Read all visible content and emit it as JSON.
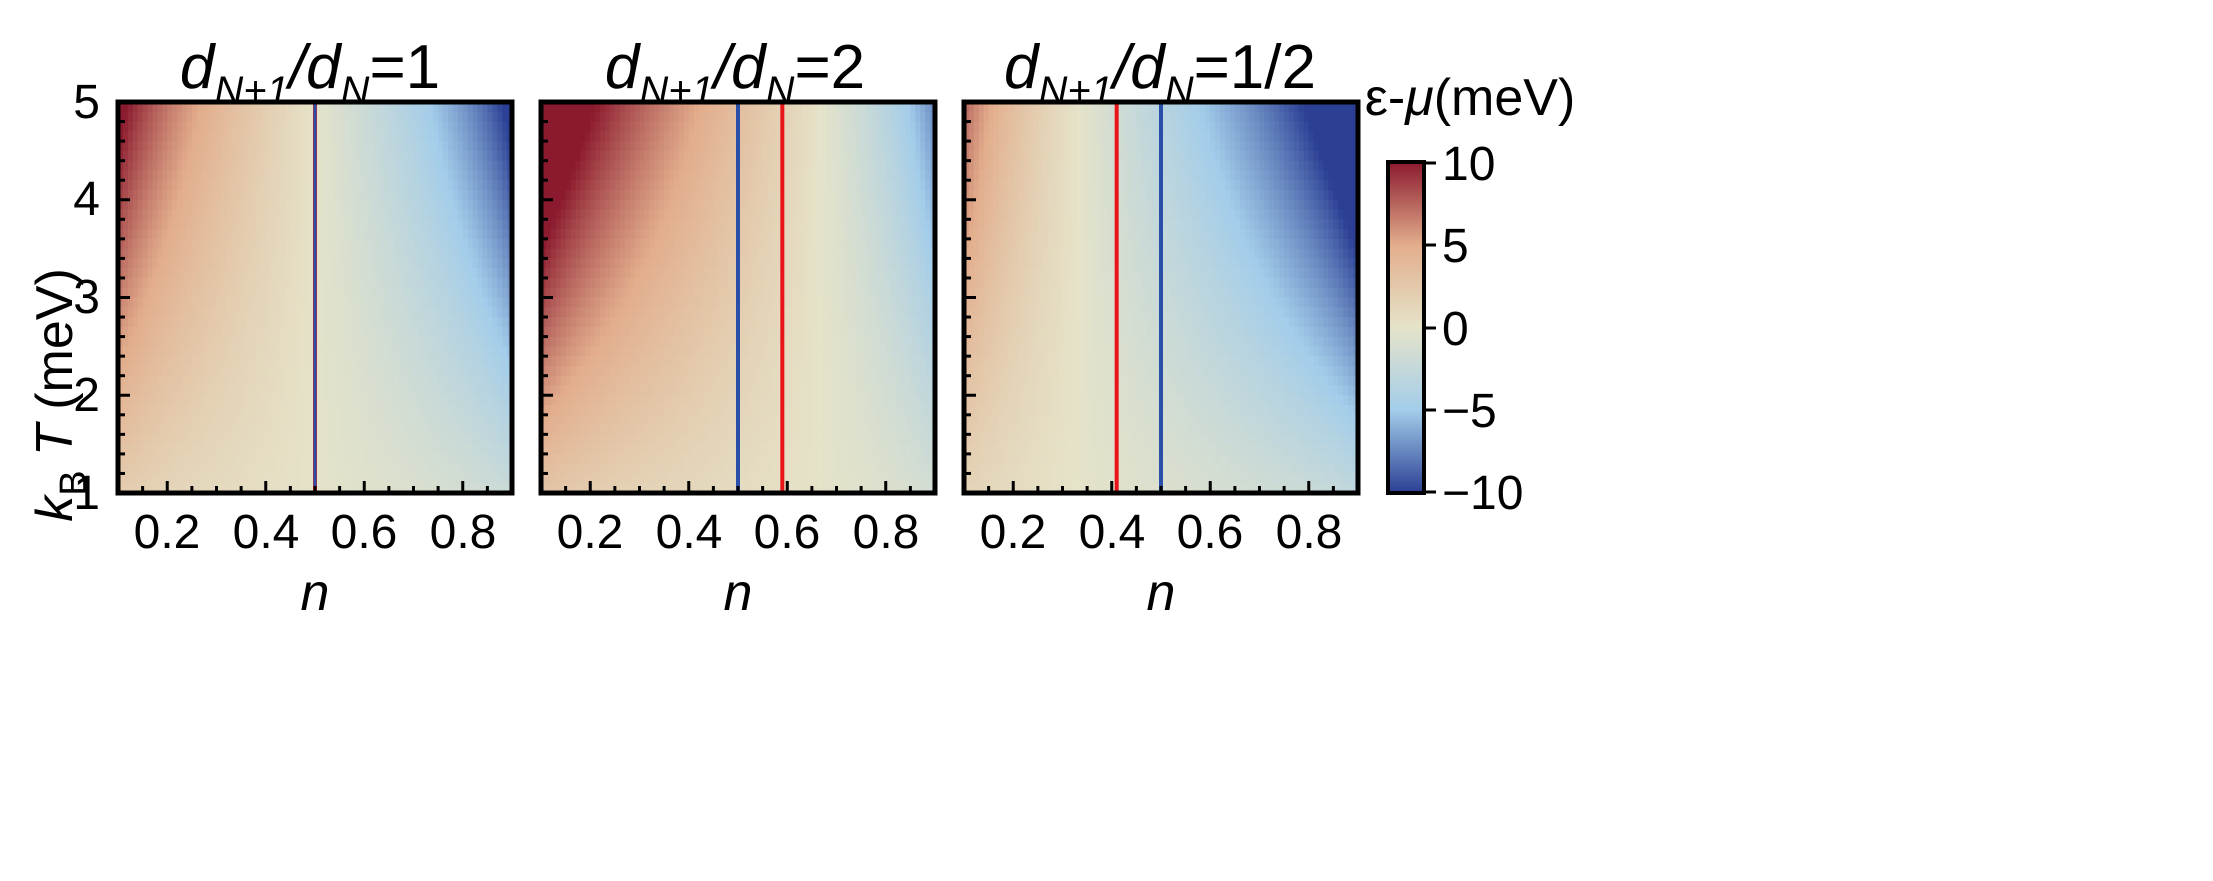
{
  "chart_data": {
    "type": "heatmap",
    "panels": [
      {
        "title": "d_{N+1}/d_N=1",
        "title_parts": {
          "d": "d",
          "sub1": "N+1",
          "slash": "/",
          "sub2": "N",
          "ratio": "=1"
        },
        "xlabel": "n",
        "ylabel": "k_B T (meV)",
        "xlim": [
          0.1,
          0.9
        ],
        "ylim": [
          1,
          5
        ],
        "xticks": [
          "0.2",
          "0.4",
          "0.6",
          "0.8"
        ],
        "yticks": [
          "1",
          "2",
          "3",
          "4",
          "5"
        ],
        "vlines": [
          {
            "x": 0.5,
            "color": "#e8141a"
          },
          {
            "x": 0.5,
            "color": "#2a4fa8"
          }
        ],
        "field": {
          "a": 0.5,
          "b": 1.0,
          "ref": 0.5
        }
      },
      {
        "title": "d_{N+1}/d_N=2",
        "title_parts": {
          "d": "d",
          "sub1": "N+1",
          "slash": "/",
          "sub2": "N",
          "ratio": "=2"
        },
        "xlabel": "n",
        "xlim": [
          0.1,
          0.9
        ],
        "ylim": [
          1,
          5
        ],
        "xticks": [
          "0.2",
          "0.4",
          "0.6",
          "0.8"
        ],
        "vlines": [
          {
            "x": 0.5,
            "color": "#2a4fa8"
          },
          {
            "x": 0.59,
            "color": "#e8141a"
          }
        ],
        "field": {
          "a": 0.59,
          "b": 2.0,
          "ref": 0.59
        }
      },
      {
        "title": "d_{N+1}/d_N=1/2",
        "title_parts": {
          "d": "d",
          "sub1": "N+1",
          "slash": "/",
          "sub2": "N",
          "ratio": "=1/2"
        },
        "xlabel": "n",
        "xlim": [
          0.1,
          0.9
        ],
        "ylim": [
          1,
          5
        ],
        "xticks": [
          "0.2",
          "0.4",
          "0.6",
          "0.8"
        ],
        "vlines": [
          {
            "x": 0.41,
            "color": "#e8141a"
          },
          {
            "x": 0.5,
            "color": "#2a4fa8"
          }
        ],
        "field": {
          "a": 0.41,
          "b": 0.5,
          "ref": 0.41
        }
      }
    ],
    "colorbar": {
      "label": "ε-μ(meV)",
      "label_parts": {
        "eps": "ε-",
        "mu": "μ",
        "unit": "(meV)"
      },
      "range": [
        -10,
        10
      ],
      "ticks": [
        "10",
        "5",
        "0",
        "−5",
        "−10"
      ],
      "colors": [
        "#2b3f94",
        "#a3cdea",
        "#e5e3c9",
        "#e2ad8c",
        "#8b1a2e"
      ]
    }
  }
}
